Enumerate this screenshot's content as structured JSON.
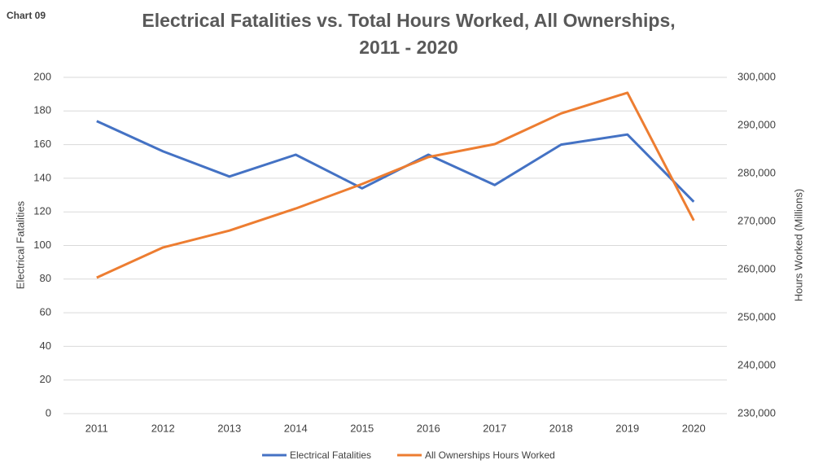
{
  "chart_data": {
    "type": "line",
    "label": "Chart 09",
    "title": [
      "Electrical Fatalities vs. Total Hours Worked, All Ownerships,",
      "2011 - 2020"
    ],
    "y_label": "Electrical Fatalities",
    "y2_label": "Hours Worked (Millions)",
    "categories": [
      "2011",
      "2012",
      "2013",
      "2014",
      "2015",
      "2016",
      "2017",
      "2018",
      "2019",
      "2020"
    ],
    "series": [
      {
        "name": "Electrical Fatalities",
        "color": "#4472c4",
        "values": [
          174,
          156,
          141,
          154,
          134,
          154,
          136,
          160,
          166,
          126
        ]
      },
      {
        "name": "All Ownerships Hours Worked",
        "color": "#ed7d31",
        "axis": "y2",
        "values": [
          258300,
          264600,
          268100,
          272700,
          277800,
          283400,
          286100,
          292500,
          296800,
          270200
        ]
      }
    ],
    "ylim": [
      0,
      200
    ],
    "yticks": [
      0,
      20,
      40,
      60,
      80,
      100,
      120,
      140,
      160,
      180,
      200
    ],
    "y2lim": [
      230000,
      300000
    ],
    "y2ticks": [
      {
        "value": 230000,
        "label": "230,000"
      },
      {
        "value": 240000,
        "label": "240,000"
      },
      {
        "value": 250000,
        "label": "250,000"
      },
      {
        "value": 260000,
        "label": "260,000"
      },
      {
        "value": 270000,
        "label": "270,000"
      },
      {
        "value": 280000,
        "label": "280,000"
      },
      {
        "value": 290000,
        "label": "290,000"
      },
      {
        "value": 300000,
        "label": "300,000"
      }
    ],
    "grid": true,
    "legend": "bottom"
  }
}
